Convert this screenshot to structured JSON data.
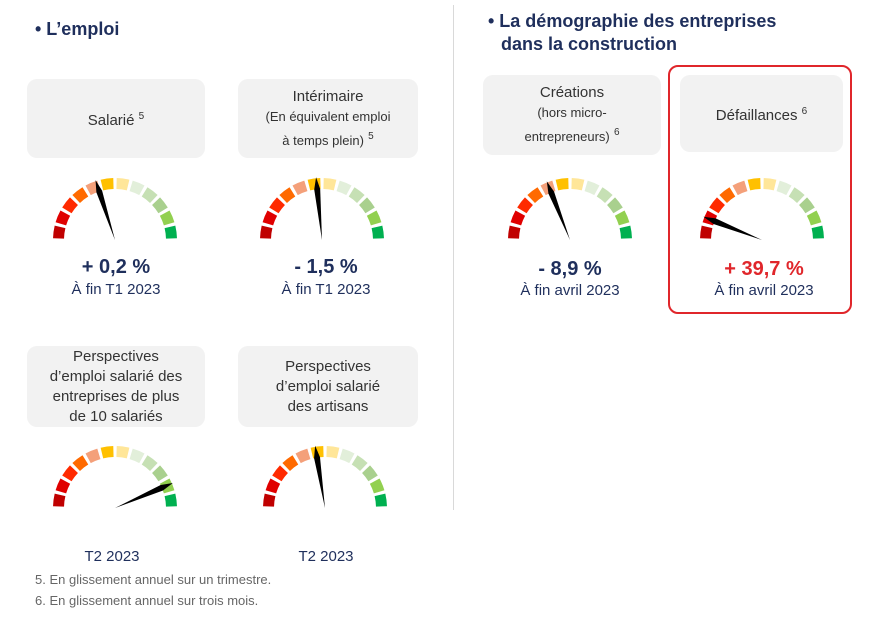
{
  "left": {
    "title": "• L’emploi"
  },
  "right": {
    "title1": "• La démographie des entreprises",
    "title2": "dans la construction"
  },
  "colors": {
    "segments": [
      "#C00000",
      "#E00000",
      "#FF2A00",
      "#FF6A00",
      "#F4A07A",
      "#FFC000",
      "#FFE699",
      "#E2EFDA",
      "#C6E0B4",
      "#A9D08E",
      "#92D050",
      "#00B050"
    ],
    "highlight": "#E0262B"
  },
  "gauges": [
    {
      "label": "Salarié",
      "sup": "5",
      "value": "+ 0,2 %",
      "period": "À fin T1 2023",
      "needle": 0.4
    },
    {
      "label": "Intérimaire",
      "label2": "(En équivalent emploi",
      "label3": "à temps plein)",
      "sup": "5",
      "value": "- 1,5 %",
      "period": "À fin T1 2023",
      "needle": 0.47
    },
    {
      "label": "Créations",
      "label2": "(hors micro-",
      "label3": "entrepreneurs)",
      "sup": "6",
      "value": "- 8,9 %",
      "period": "À fin avril 2023",
      "needle": 0.38
    },
    {
      "label": "Défaillances",
      "sup": "6",
      "value": "+ 39,7 %",
      "period": "À fin avril 2023",
      "needle": 0.12
    },
    {
      "label": "Perspectives",
      "label2": "d’emploi salarié des",
      "label3": "entreprises de plus",
      "label4": "de 10 salariés",
      "period": "T2 2023",
      "needle": 0.87
    },
    {
      "label": "Perspectives",
      "label2": "d’emploi salarié",
      "label3": "des artisans",
      "period": "T2 2023",
      "needle": 0.45
    }
  ],
  "notes": [
    "5. En glissement annuel sur un trimestre.",
    "6. En glissement annuel sur trois mois."
  ]
}
